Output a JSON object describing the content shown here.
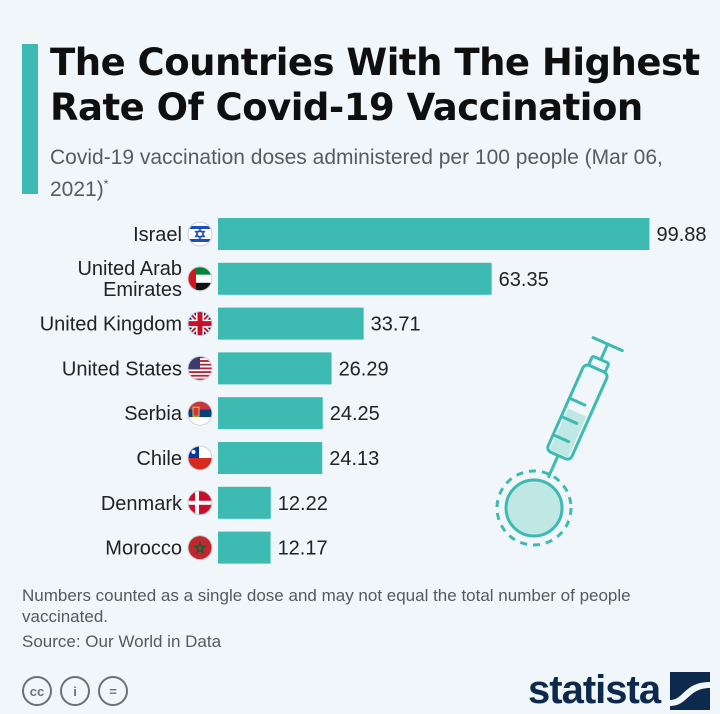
{
  "header": {
    "title": "The Countries With The Highest Rate Of Covid-19 Vaccination",
    "subtitle": "Covid-19 vaccination doses administered per 100 people (Mar 06, 2021)",
    "subtitle_mark": "*"
  },
  "chart_data": {
    "type": "bar",
    "orientation": "horizontal",
    "categories": [
      "Israel",
      "United Arab Emirates",
      "United Kingdom",
      "United States",
      "Serbia",
      "Chile",
      "Denmark",
      "Morocco"
    ],
    "values": [
      99.88,
      63.35,
      33.71,
      26.29,
      24.25,
      24.13,
      12.22,
      12.17
    ],
    "value_labels": [
      "99.88",
      "63.35",
      "33.71",
      "26.29",
      "24.25",
      "24.13",
      "12.22",
      "12.17"
    ],
    "bar_color": "#3dbab1",
    "xlim": [
      0,
      100
    ],
    "grid": false,
    "flags": [
      "israel-flag-icon",
      "uae-flag-icon",
      "uk-flag-icon",
      "usa-flag-icon",
      "serbia-flag-icon",
      "chile-flag-icon",
      "denmark-flag-icon",
      "morocco-flag-icon"
    ]
  },
  "footer": {
    "note": "Numbers counted as a single dose and may not equal the total number of people vaccinated.",
    "source": "Source: Our World in Data",
    "brand": "statista",
    "license_icons": [
      "cc-icon",
      "by-icon",
      "nd-icon"
    ],
    "license_labels": [
      "cc",
      "i",
      "="
    ]
  },
  "decoration": {
    "syringe": "syringe-icon"
  }
}
